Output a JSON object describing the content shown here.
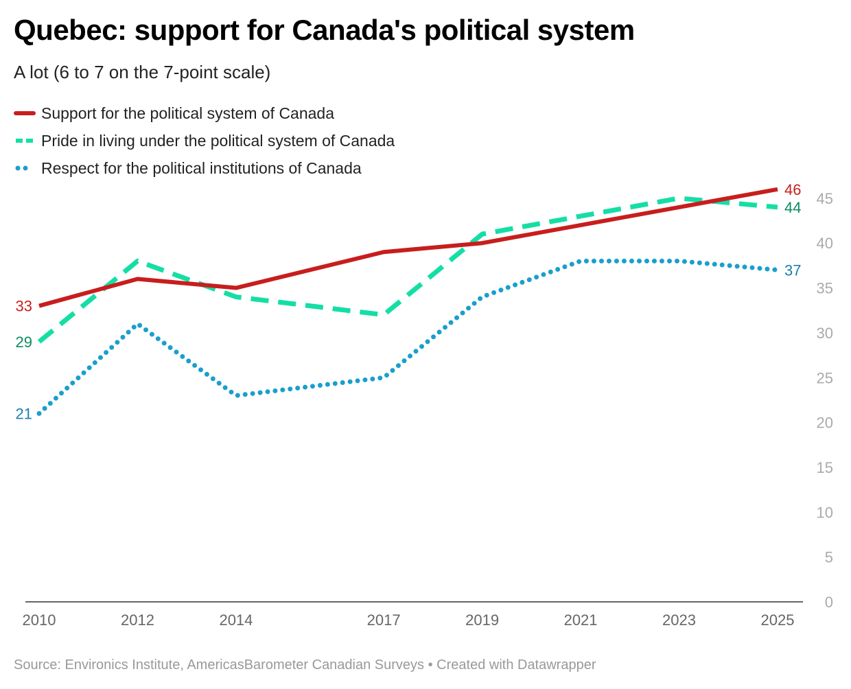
{
  "title": "Quebec: support for Canada's political system",
  "subtitle": "A lot (6 to 7 on the 7-point scale)",
  "source": "Source: Environics Institute, AmericasBarometer Canadian Surveys • Created with Datawrapper",
  "chart_data": {
    "type": "line",
    "title": "Quebec: support for Canada's political system",
    "subtitle": "A lot (6 to 7 on the 7-point scale)",
    "x": [
      2010,
      2012,
      2014,
      2017,
      2019,
      2021,
      2023,
      2025
    ],
    "x_tick_labels": [
      "2010",
      "2012",
      "2014",
      "2017",
      "2019",
      "2021",
      "2023",
      "2025"
    ],
    "y_ticks": [
      0,
      5,
      10,
      15,
      20,
      25,
      30,
      35,
      40,
      45
    ],
    "ylim": [
      0,
      45
    ],
    "grid": false,
    "legend_position": "top-left",
    "series": [
      {
        "name": "Support for the political system of Canada",
        "style": "solid",
        "color": "#c71e1d",
        "label_color": "#c71e1d",
        "values": [
          33,
          36,
          35,
          39,
          40,
          42,
          44,
          46
        ],
        "start_label": "33",
        "end_label": "46"
      },
      {
        "name": "Pride in living under the political system of Canada",
        "style": "dashed",
        "color": "#15dea5",
        "label_color": "#0b8a62",
        "values": [
          29,
          38,
          34,
          32,
          41,
          43,
          45,
          44
        ],
        "start_label": "29",
        "end_label": "44"
      },
      {
        "name": "Respect for the political institutions of Canada",
        "style": "dotted",
        "color": "#1a9fcd",
        "label_color": "#1b7fab",
        "values": [
          21,
          31,
          23,
          25,
          34,
          38,
          38,
          37
        ],
        "start_label": "21",
        "end_label": "37"
      }
    ]
  }
}
